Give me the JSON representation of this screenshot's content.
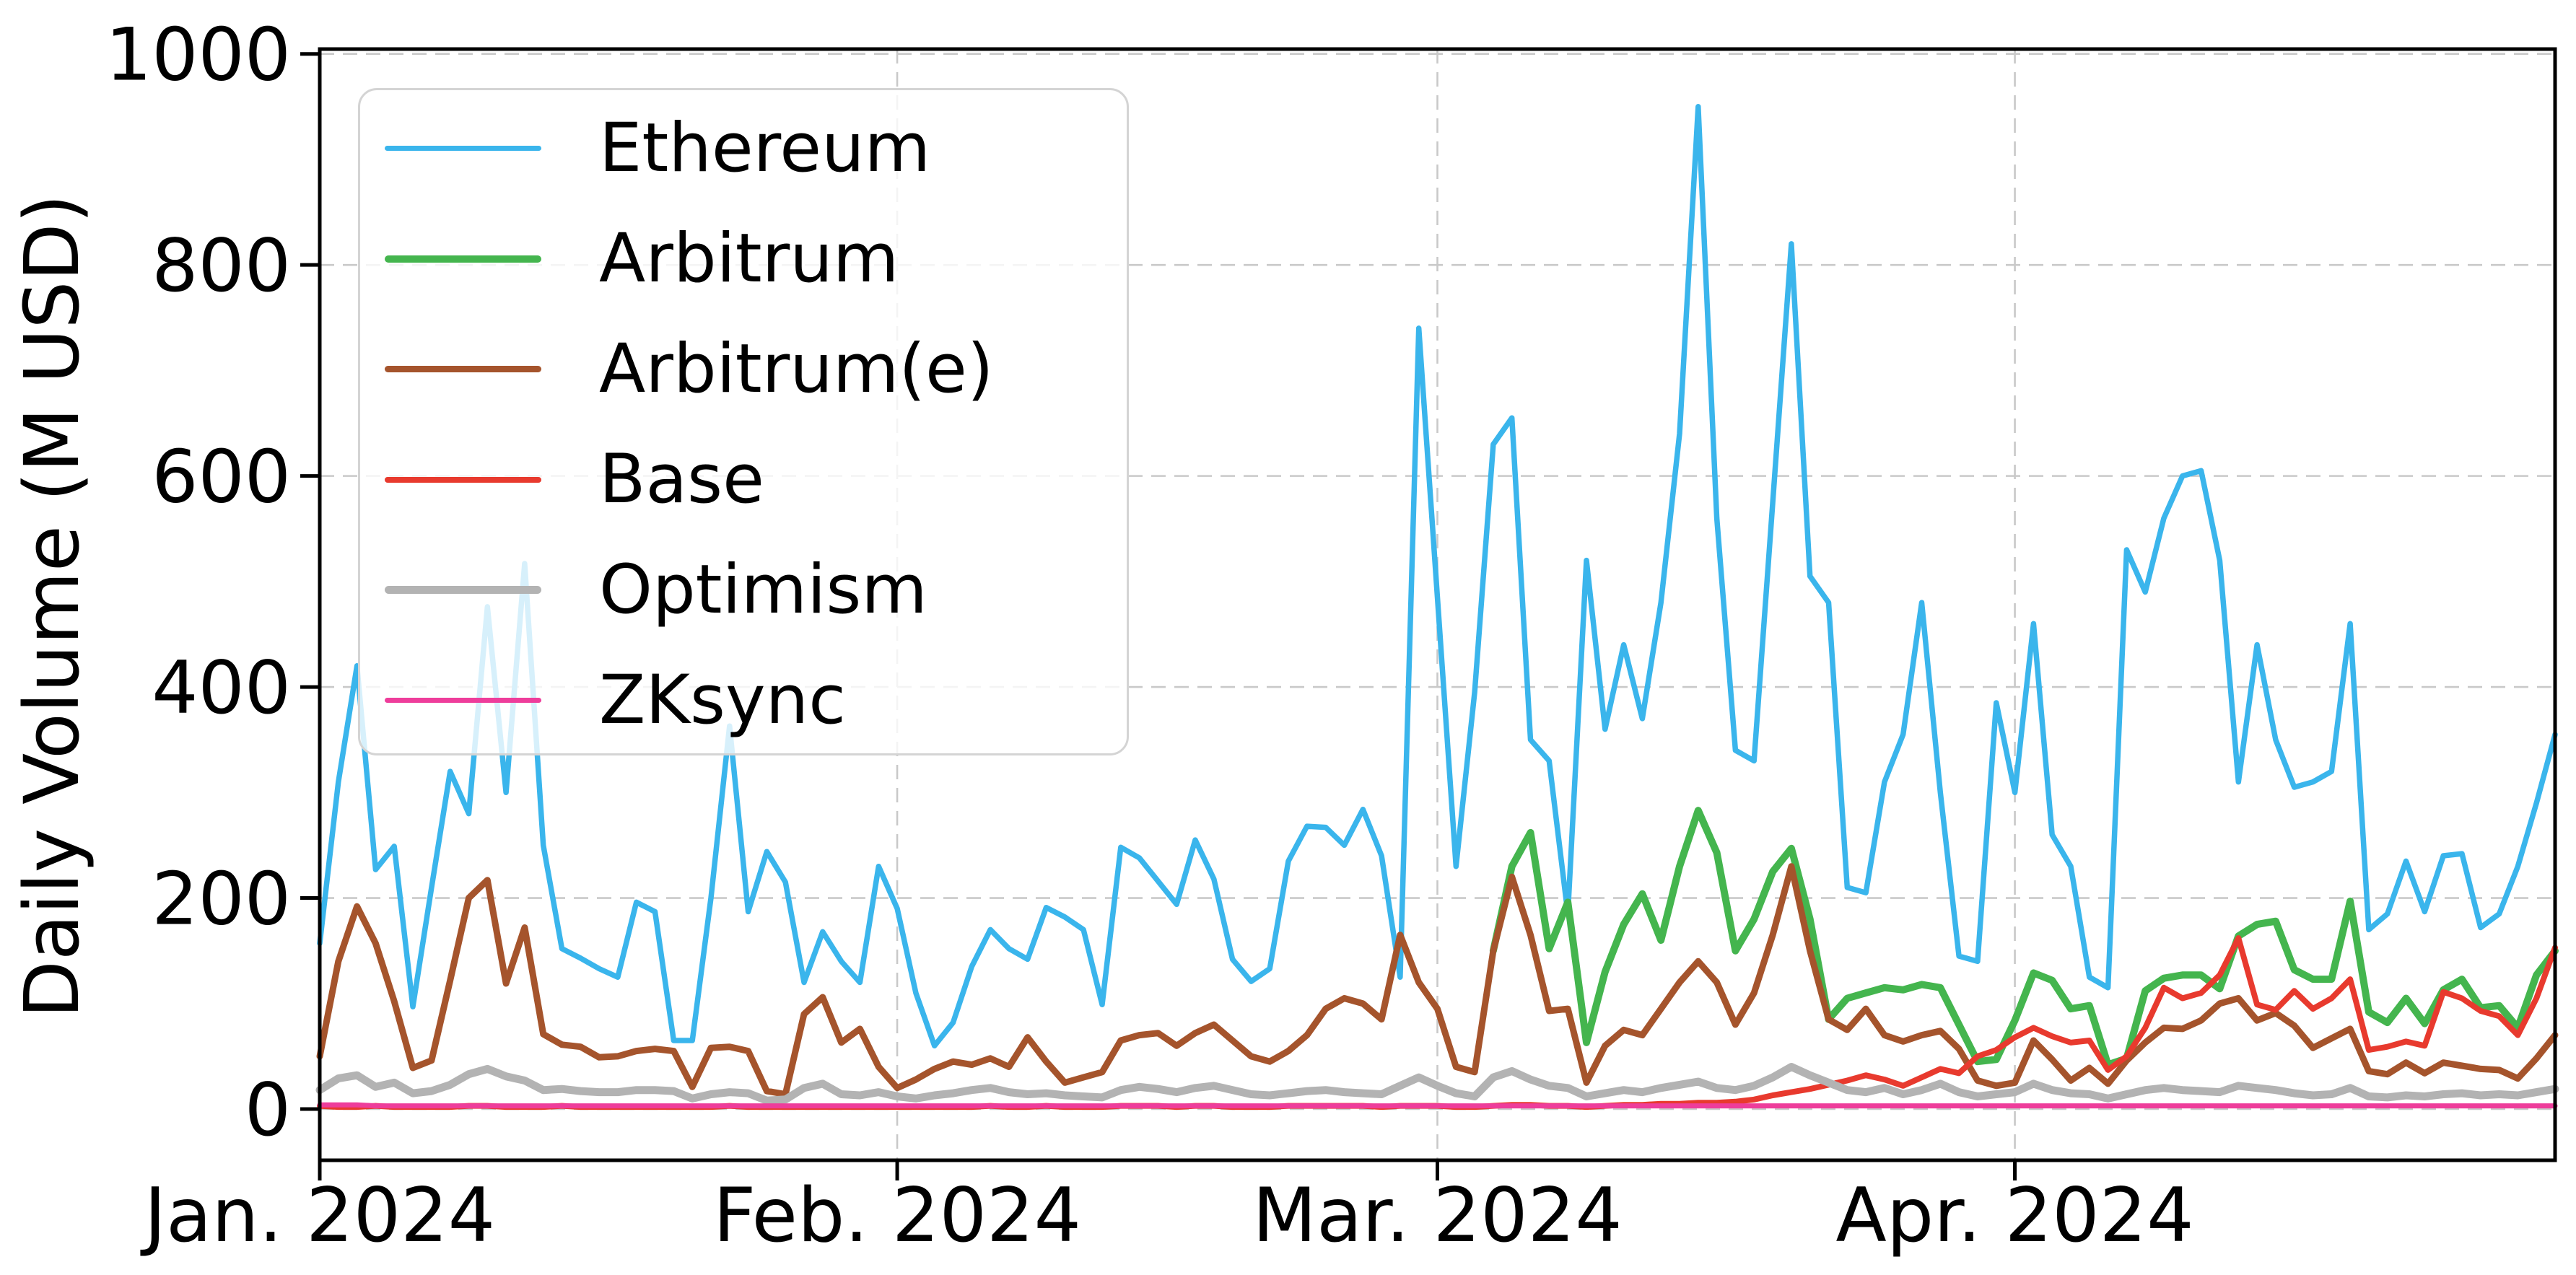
{
  "chart_data": {
    "type": "line",
    "title": "",
    "xlabel": "",
    "ylabel": "Daily Volume (M USD)",
    "x_start_date": "2024-01-01",
    "x_end_date": "2024-04-30",
    "x_frequency": "daily",
    "n_points": 121,
    "ylim": [
      -48,
      1005
    ],
    "grid": true,
    "grid_style": "dashed",
    "y_ticks": [
      0,
      200,
      400,
      600,
      800,
      1000
    ],
    "x_ticks": [
      {
        "label": "Jan. 2024",
        "day_index": 0
      },
      {
        "label": "Feb. 2024",
        "day_index": 31
      },
      {
        "label": "Mar. 2024",
        "day_index": 60
      },
      {
        "label": "Apr. 2024",
        "day_index": 91
      }
    ],
    "legend_position": "upper-left",
    "series": [
      {
        "name": "Ethereum",
        "color": "#3ab5ec",
        "line_width": 7.5,
        "values": [
          157,
          310,
          420,
          227,
          249,
          97,
          210,
          320,
          280,
          476,
          300,
          517,
          250,
          152,
          143,
          133,
          125,
          196,
          187,
          65,
          65,
          200,
          363,
          187,
          244,
          215,
          120,
          168,
          140,
          120,
          230,
          190,
          110,
          60,
          82,
          135,
          170,
          152,
          142,
          191,
          182,
          170,
          99,
          248,
          238,
          216,
          194,
          255,
          218,
          142,
          121,
          133,
          235,
          268,
          267,
          250,
          284,
          240,
          125,
          740,
          485,
          230,
          395,
          630,
          655,
          350,
          330,
          185,
          520,
          360,
          440,
          370,
          480,
          640,
          950,
          560,
          340,
          330,
          575,
          820,
          505,
          480,
          210,
          205,
          310,
          355,
          480,
          300,
          145,
          140,
          385,
          300,
          460,
          260,
          230,
          125,
          115,
          530,
          490,
          560,
          600,
          605,
          520,
          310,
          440,
          350,
          305,
          310,
          320,
          460,
          170,
          185,
          235,
          187,
          240,
          242,
          172,
          185,
          230,
          290,
          355
        ]
      },
      {
        "name": "Arbitrum",
        "color": "#44b54e",
        "line_width": 10,
        "values": [
          null,
          null,
          null,
          null,
          null,
          null,
          null,
          null,
          null,
          null,
          null,
          null,
          null,
          null,
          null,
          null,
          null,
          null,
          null,
          null,
          null,
          null,
          null,
          null,
          null,
          null,
          null,
          null,
          null,
          null,
          null,
          null,
          null,
          null,
          null,
          null,
          null,
          null,
          null,
          null,
          null,
          null,
          null,
          null,
          null,
          null,
          null,
          null,
          null,
          null,
          null,
          null,
          null,
          null,
          null,
          null,
          null,
          null,
          null,
          null,
          null,
          null,
          null,
          150,
          230,
          262,
          152,
          196,
          63,
          130,
          175,
          204,
          160,
          230,
          283,
          243,
          150,
          180,
          225,
          247,
          180,
          85,
          105,
          110,
          115,
          113,
          118,
          115,
          80,
          45,
          47,
          84,
          129,
          122,
          95,
          98,
          42,
          48,
          112,
          124,
          127,
          127,
          114,
          164,
          175,
          178,
          132,
          123,
          123,
          197,
          92,
          82,
          105,
          81,
          113,
          123,
          96,
          98,
          77,
          127,
          150
        ]
      },
      {
        "name": "Arbitrum(e)",
        "color": "#a5542c",
        "line_width": 9,
        "values": [
          50,
          140,
          192,
          157,
          102,
          39,
          46,
          122,
          200,
          217,
          119,
          172,
          71,
          61,
          59,
          49,
          50,
          55,
          57,
          55,
          21,
          58,
          59,
          55,
          17,
          14,
          90,
          106,
          63,
          76,
          40,
          20,
          28,
          38,
          45,
          42,
          48,
          40,
          68,
          45,
          25,
          30,
          35,
          65,
          70,
          72,
          60,
          72,
          80,
          65,
          50,
          45,
          55,
          70,
          95,
          105,
          100,
          85,
          165,
          120,
          95,
          40,
          35,
          150,
          220,
          165,
          93,
          95,
          25,
          60,
          75,
          70,
          95,
          120,
          140,
          120,
          80,
          110,
          165,
          230,
          150,
          85,
          75,
          95,
          70,
          64,
          70,
          74,
          57,
          27,
          22,
          25,
          65,
          47,
          27,
          39,
          24,
          46,
          63,
          77,
          76,
          84,
          100,
          105,
          84,
          91,
          79,
          58,
          67,
          76,
          36,
          33,
          44,
          34,
          44,
          41,
          38,
          37,
          29,
          48,
          70
        ]
      },
      {
        "name": "Base",
        "color": "#e83a2e",
        "line_width": 8,
        "values": [
          3,
          2,
          2,
          3,
          2,
          2,
          2,
          2,
          3,
          3,
          2,
          2,
          2,
          3,
          2,
          2,
          2,
          2,
          2,
          2,
          2,
          2,
          3,
          2,
          2,
          2,
          2,
          2,
          2,
          2,
          2,
          2,
          2,
          2,
          2,
          2,
          3,
          2,
          2,
          3,
          2,
          2,
          2,
          3,
          3,
          3,
          2,
          3,
          3,
          2,
          2,
          2,
          3,
          3,
          3,
          3,
          3,
          2,
          3,
          3,
          3,
          2,
          2,
          3,
          4,
          4,
          3,
          3,
          2,
          3,
          4,
          4,
          5,
          5,
          6,
          6,
          7,
          9,
          13,
          16,
          19,
          23,
          27,
          32,
          28,
          22,
          30,
          38,
          34,
          50,
          56,
          68,
          77,
          69,
          63,
          65,
          37,
          50,
          77,
          115,
          105,
          110,
          127,
          162,
          99,
          94,
          112,
          95,
          105,
          123,
          56,
          59,
          64,
          60,
          111,
          105,
          93,
          88,
          70,
          105,
          153
        ]
      },
      {
        "name": "Optimism",
        "color": "#b3b3b3",
        "line_width": 11,
        "values": [
          18,
          29,
          32,
          21,
          25,
          15,
          17,
          23,
          33,
          38,
          31,
          27,
          18,
          19,
          17,
          16,
          16,
          18,
          18,
          17,
          10,
          14,
          16,
          15,
          8,
          9,
          20,
          24,
          14,
          13,
          16,
          12,
          10,
          13,
          15,
          18,
          20,
          16,
          14,
          15,
          13,
          12,
          11,
          18,
          21,
          19,
          16,
          20,
          22,
          18,
          14,
          13,
          15,
          17,
          18,
          16,
          15,
          14,
          22,
          30,
          22,
          15,
          12,
          30,
          36,
          28,
          22,
          20,
          12,
          15,
          18,
          16,
          20,
          23,
          26,
          20,
          18,
          22,
          30,
          40,
          32,
          25,
          18,
          16,
          20,
          14,
          18,
          24,
          16,
          12,
          14,
          16,
          24,
          18,
          15,
          14,
          10,
          14,
          18,
          20,
          18,
          17,
          16,
          22,
          20,
          18,
          15,
          13,
          14,
          20,
          12,
          11,
          13,
          12,
          14,
          15,
          13,
          14,
          13,
          16,
          19
        ]
      },
      {
        "name": "ZKsync",
        "color": "#ee3d9b",
        "line_width": 7,
        "values": [
          4,
          4,
          4,
          3,
          3,
          3,
          3,
          3,
          3,
          3,
          3,
          3,
          3,
          3,
          3,
          3,
          3,
          3,
          3,
          3,
          3,
          3,
          3,
          3,
          3,
          3,
          3,
          3,
          3,
          3,
          3,
          3,
          3,
          3,
          3,
          3,
          3,
          3,
          3,
          3,
          3,
          3,
          3,
          3,
          3,
          3,
          3,
          3,
          3,
          3,
          3,
          3,
          3,
          3,
          3,
          3,
          3,
          3,
          3,
          3,
          3,
          3,
          3,
          3,
          3,
          3,
          3,
          3,
          3,
          3,
          3,
          3,
          3,
          3,
          3,
          3,
          3,
          3,
          3,
          3,
          3,
          3,
          3,
          3,
          3,
          3,
          3,
          3,
          3,
          3,
          3,
          3,
          3,
          3,
          3,
          3,
          3,
          3,
          3,
          3,
          3,
          3,
          3,
          3,
          3,
          3,
          3,
          3,
          3,
          3,
          3,
          3,
          3,
          3,
          3,
          3,
          3,
          3,
          3,
          3,
          3
        ]
      }
    ]
  },
  "style": {
    "background": "#ffffff",
    "axes_color": "#000000",
    "grid_color": "#c9c9c9",
    "tick_label_color": "#000000",
    "legend_border_color": "#d4d4d4"
  }
}
